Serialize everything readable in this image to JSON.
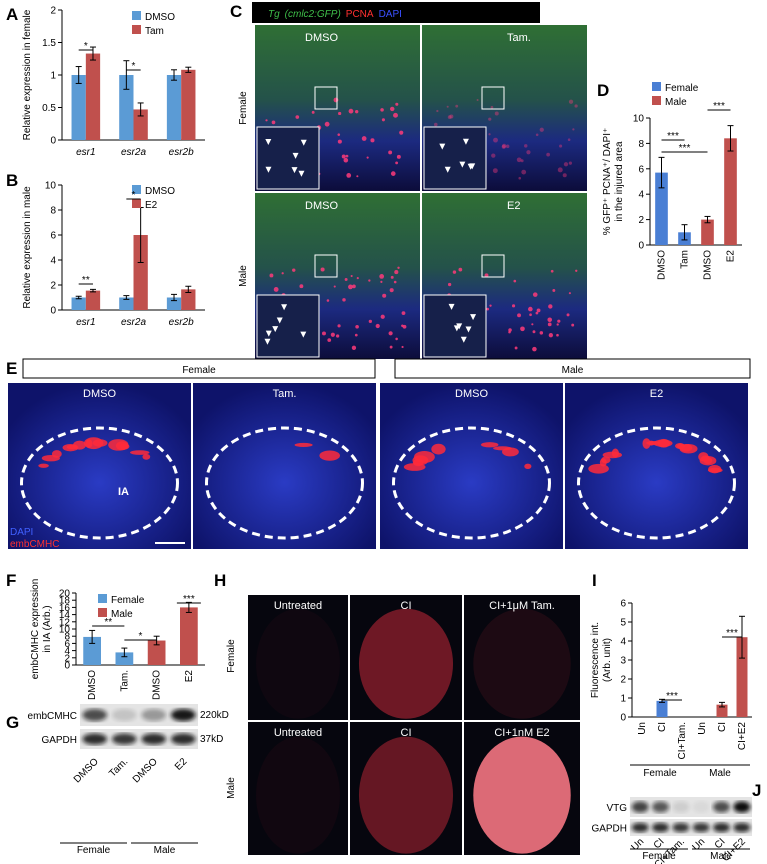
{
  "chart_data": [
    {
      "type": "bar",
      "label": "A",
      "ylabel": [
        "Relative expression in female"
      ],
      "categories": [
        "esr1",
        "esr2a",
        "esr2b"
      ],
      "category_style": "italic",
      "series": [
        {
          "name": "DMSO",
          "color": "#5b9bd5",
          "values": [
            1,
            1,
            1
          ],
          "errors": [
            0.13,
            0.22,
            0.08
          ]
        },
        {
          "name": "Tam",
          "color": "#c0504d",
          "values": [
            1.33,
            0.47,
            1.08
          ],
          "errors": [
            0.1,
            0.1,
            0.04
          ]
        }
      ],
      "ylim": [
        0,
        2
      ],
      "yticks": [
        0,
        0.5,
        1,
        1.5,
        2
      ],
      "legend": "upper right",
      "annotations": [
        "*",
        "*"
      ]
    },
    {
      "type": "bar",
      "label": "B",
      "ylabel": [
        "Relative expression in male"
      ],
      "categories": [
        "esr1",
        "esr2a",
        "esr2b"
      ],
      "category_style": "italic",
      "series": [
        {
          "name": "DMSO",
          "color": "#5b9bd5",
          "values": [
            1,
            1,
            1
          ],
          "errors": [
            0.1,
            0.15,
            0.25
          ]
        },
        {
          "name": "E2",
          "color": "#c0504d",
          "values": [
            1.55,
            6,
            1.65
          ],
          "errors": [
            0.1,
            2.2,
            0.25
          ]
        }
      ],
      "ylim": [
        0,
        10
      ],
      "yticks": [
        0,
        2,
        4,
        6,
        8,
        10
      ],
      "legend": "upper right",
      "annotations": [
        "**",
        "*"
      ]
    },
    {
      "type": "bar",
      "label": "D",
      "ylabel": [
        "% GFP⁺ PCNA⁺/ DAPI⁺",
        "in the injured area"
      ],
      "categories": [
        "DMSO",
        "Tam",
        "DMSO",
        "E2"
      ],
      "category_style": "rotated",
      "series": [
        {
          "name": "Female",
          "color": "#4a7fd4",
          "values": [
            5.7,
            1.0,
            null,
            null
          ],
          "errors": [
            1.2,
            0.6,
            null,
            null
          ]
        },
        {
          "name": "Male",
          "color": "#c0504d",
          "values": [
            null,
            null,
            2.0,
            8.4
          ],
          "errors": [
            null,
            null,
            0.25,
            1.0
          ]
        }
      ],
      "ylim": [
        0,
        10
      ],
      "yticks": [
        0,
        2,
        4,
        6,
        8,
        10
      ],
      "legend": "upper left",
      "annotations": [
        "***",
        "***",
        "***"
      ]
    },
    {
      "type": "bar",
      "label": "F",
      "ylabel": [
        "embCMHC expression",
        "in IA (Arb.)"
      ],
      "categories": [
        "DMSO",
        "Tam.",
        "DMSO",
        "E2"
      ],
      "category_style": "rotated",
      "series": [
        {
          "name": "Female",
          "color": "#5b9bd5",
          "values": [
            7.8,
            3.5,
            null,
            null
          ],
          "errors": [
            1.8,
            1.2,
            null,
            null
          ]
        },
        {
          "name": "Male",
          "color": "#c0504d",
          "values": [
            null,
            null,
            6.8,
            16
          ],
          "errors": [
            null,
            null,
            1.2,
            1.4
          ]
        }
      ],
      "ylim": [
        0,
        20
      ],
      "yticks": [
        0,
        2,
        4,
        6,
        8,
        10,
        12,
        14,
        16,
        18,
        20
      ],
      "legend": "upper left",
      "annotations": [
        "**",
        "*",
        "***"
      ]
    },
    {
      "type": "bar",
      "label": "I",
      "ylabel": [
        "Fluorescence int.",
        "(Arb. unit)"
      ],
      "categories": [
        "Un",
        "CI",
        "CI+Tam.",
        "Un",
        "CI",
        "CI+E2"
      ],
      "category_style": "rotated",
      "series": [
        {
          "name": "Female",
          "color": "#4a7fd4",
          "values": [
            0,
            0.85,
            0,
            null,
            null,
            null
          ],
          "errors": [
            0,
            0.08,
            0,
            null,
            null,
            null
          ]
        },
        {
          "name": "Male",
          "color": "#c0504d",
          "values": [
            null,
            null,
            null,
            0,
            0.65,
            4.2
          ],
          "errors": [
            null,
            null,
            null,
            0,
            0.12,
            1.1
          ]
        }
      ],
      "ylim": [
        0,
        6
      ],
      "yticks": [
        0,
        1,
        2,
        3,
        4,
        5,
        6
      ],
      "annotations": [
        "***",
        "***"
      ],
      "groups": [
        "Female",
        "Male"
      ]
    }
  ],
  "micrographs": {
    "C": {
      "label": "C",
      "title": [
        "Tg",
        "(cmlc2:GFP)",
        "PCNA",
        "DAPI"
      ],
      "rows": [
        "Female",
        "Male"
      ],
      "images": [
        "DMSO",
        "Tam.",
        "DMSO",
        "E2"
      ]
    },
    "E": {
      "label": "E",
      "groups": [
        "Female",
        "Male"
      ],
      "images": [
        "DMSO",
        "Tam.",
        "DMSO",
        "E2"
      ],
      "region": "IA",
      "stains": [
        "DAPI",
        "embCMHC"
      ]
    },
    "H": {
      "label": "H",
      "rows": [
        "Female",
        "Male"
      ],
      "images": [
        "Untreated",
        "CI",
        "CI+1μM Tam.",
        "Untreated",
        "CI",
        "CI+1nM E2"
      ]
    }
  },
  "blots": {
    "G": {
      "label": "G",
      "bands": [
        "embCMHC",
        "GAPDH"
      ],
      "sizes": [
        "220kD",
        "37kD"
      ],
      "lanes": [
        "DMSO",
        "Tam.",
        "DMSO",
        "E2"
      ],
      "groups": [
        "Female",
        "Male"
      ]
    },
    "J": {
      "label": "J",
      "bands": [
        "VTG",
        "GAPDH"
      ],
      "lanes": [
        "Un",
        "CI",
        "CI+Tam.",
        "Un",
        "CI",
        "CI+E2"
      ],
      "groups": [
        "Female",
        "Male"
      ]
    }
  }
}
